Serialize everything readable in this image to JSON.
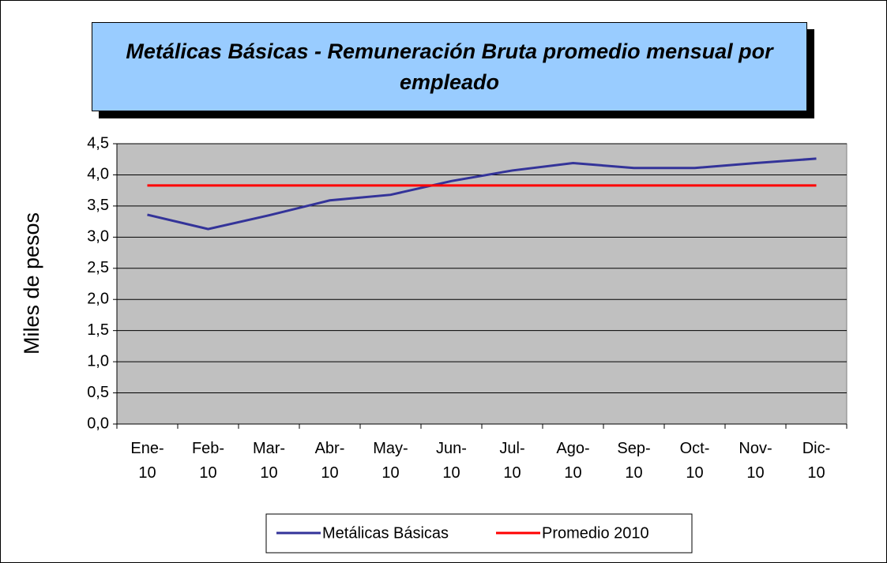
{
  "chart_data": {
    "type": "line",
    "title": "Metálicas Básicas - Remuneración Bruta promedio mensual por empleado",
    "ylabel": "Miles de pesos",
    "categories": [
      "Ene-10",
      "Feb-10",
      "Mar-10",
      "Abr-10",
      "May-10",
      "Jun-10",
      "Jul-10",
      "Ago-10",
      "Sep-10",
      "Oct-10",
      "Nov-10",
      "Dic-10"
    ],
    "series": [
      {
        "name": "Metálicas Básicas",
        "color": "#333399",
        "values": [
          3.36,
          3.13,
          3.35,
          3.59,
          3.68,
          3.9,
          4.07,
          4.19,
          4.11,
          4.11,
          4.19,
          4.26
        ]
      },
      {
        "name": "Promedio 2010",
        "color": "#ff0000",
        "values": [
          3.83,
          3.83,
          3.83,
          3.83,
          3.83,
          3.83,
          3.83,
          3.83,
          3.83,
          3.83,
          3.83,
          3.83
        ]
      }
    ],
    "ylim": [
      0,
      4.5
    ],
    "yticks": [
      {
        "value": 0,
        "label": "0,0"
      },
      {
        "value": 0.5,
        "label": "0,5"
      },
      {
        "value": 1,
        "label": "1,0"
      },
      {
        "value": 1.5,
        "label": "1,5"
      },
      {
        "value": 2,
        "label": "2,0"
      },
      {
        "value": 2.5,
        "label": "2,5"
      },
      {
        "value": 3,
        "label": "3,0"
      },
      {
        "value": 3.5,
        "label": "3,5"
      },
      {
        "value": 4,
        "label": "4,0"
      },
      {
        "value": 4.5,
        "label": "4,5"
      }
    ],
    "grid": true,
    "legend": "bottom"
  }
}
